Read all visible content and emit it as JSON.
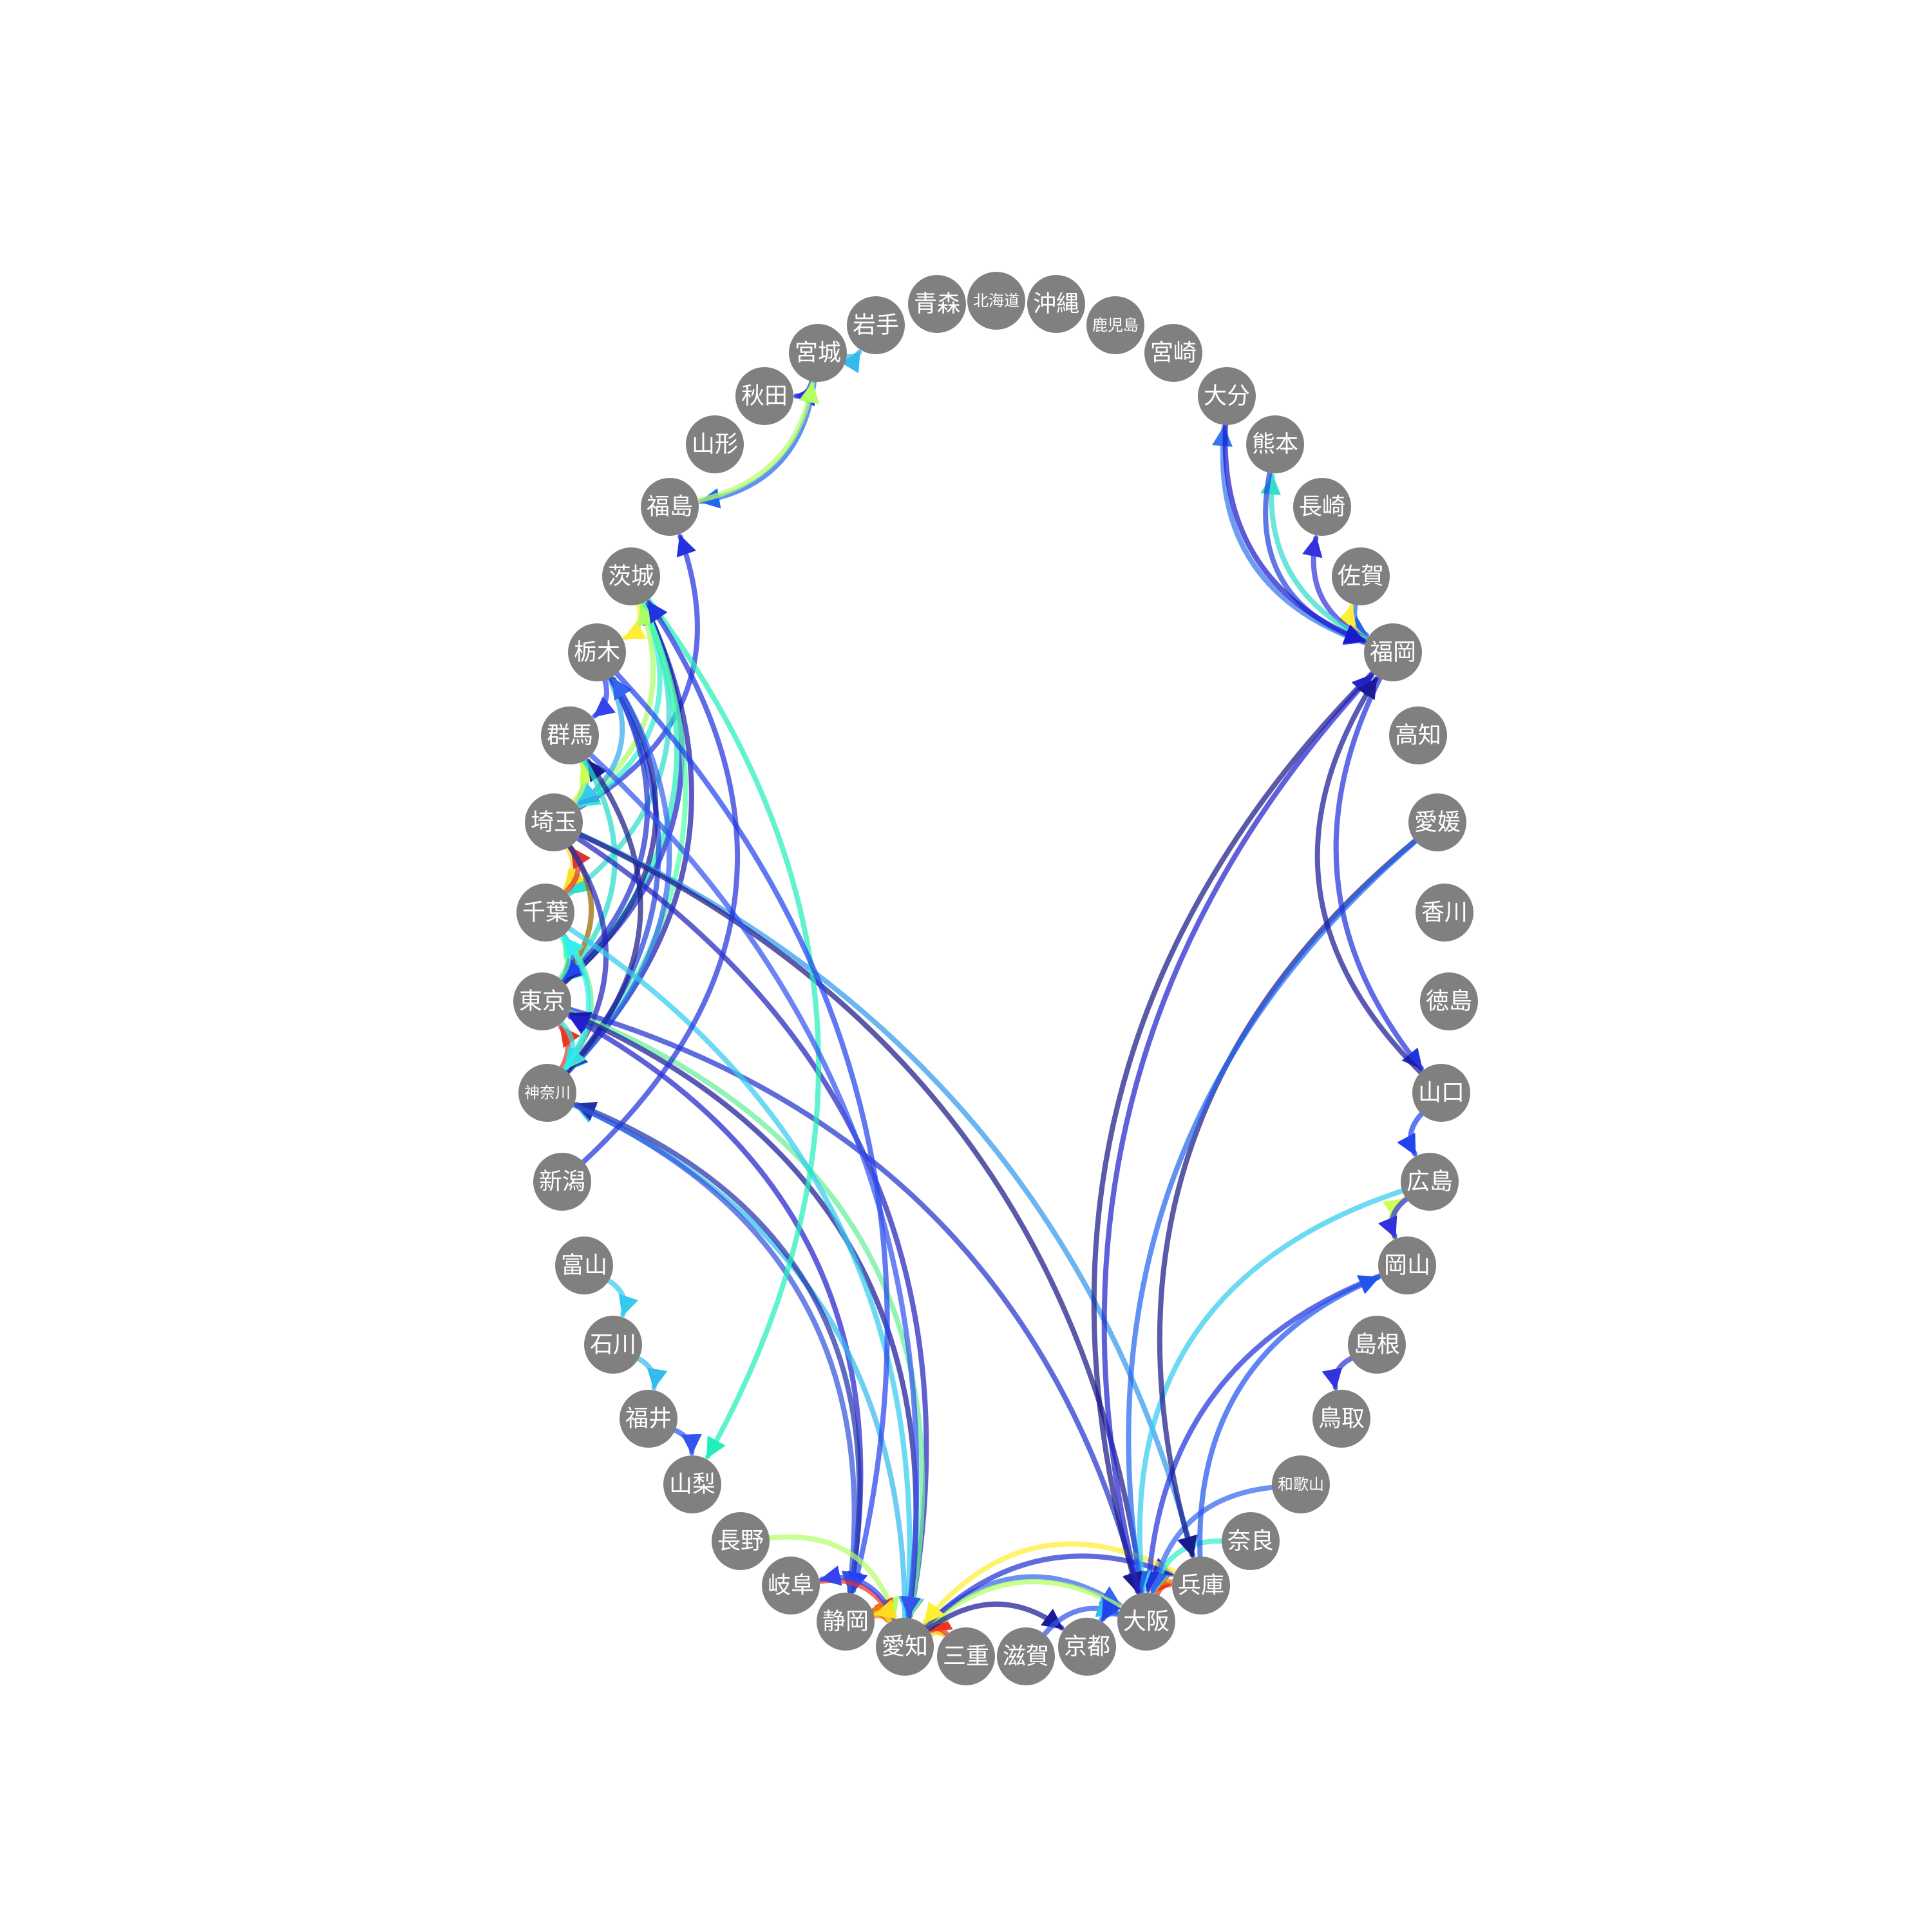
{
  "diagram": {
    "type": "directed-graph",
    "node_color": "#808080",
    "label_color": "#ffffff",
    "nodes": [
      {
        "id": "aomori",
        "label": "青森"
      },
      {
        "id": "hokkaido",
        "label": "北海道"
      },
      {
        "id": "okinawa",
        "label": "沖縄"
      },
      {
        "id": "kagoshima",
        "label": "鹿児島"
      },
      {
        "id": "miyazaki",
        "label": "宮崎"
      },
      {
        "id": "oita",
        "label": "大分"
      },
      {
        "id": "kumamoto",
        "label": "熊本"
      },
      {
        "id": "nagasaki",
        "label": "長崎"
      },
      {
        "id": "saga",
        "label": "佐賀"
      },
      {
        "id": "fukuoka",
        "label": "福岡"
      },
      {
        "id": "kochi",
        "label": "高知"
      },
      {
        "id": "ehime",
        "label": "愛媛"
      },
      {
        "id": "kagawa",
        "label": "香川"
      },
      {
        "id": "tokushima",
        "label": "徳島"
      },
      {
        "id": "yamaguchi",
        "label": "山口"
      },
      {
        "id": "hiroshima",
        "label": "広島"
      },
      {
        "id": "okayama",
        "label": "岡山"
      },
      {
        "id": "shimane",
        "label": "島根"
      },
      {
        "id": "tottori",
        "label": "鳥取"
      },
      {
        "id": "wakayama",
        "label": "和歌山"
      },
      {
        "id": "nara",
        "label": "奈良"
      },
      {
        "id": "hyogo",
        "label": "兵庫"
      },
      {
        "id": "osaka",
        "label": "大阪"
      },
      {
        "id": "kyoto",
        "label": "京都"
      },
      {
        "id": "shiga",
        "label": "滋賀"
      },
      {
        "id": "mie",
        "label": "三重"
      },
      {
        "id": "aichi",
        "label": "愛知"
      },
      {
        "id": "shizuoka",
        "label": "静岡"
      },
      {
        "id": "gifu",
        "label": "岐阜"
      },
      {
        "id": "nagano",
        "label": "長野"
      },
      {
        "id": "yamanashi",
        "label": "山梨"
      },
      {
        "id": "fukui",
        "label": "福井"
      },
      {
        "id": "ishikawa",
        "label": "石川"
      },
      {
        "id": "toyama",
        "label": "富山"
      },
      {
        "id": "niigata",
        "label": "新潟"
      },
      {
        "id": "kanagawa",
        "label": "神奈川"
      },
      {
        "id": "tokyo",
        "label": "東京"
      },
      {
        "id": "chiba",
        "label": "千葉"
      },
      {
        "id": "saitama",
        "label": "埼玉"
      },
      {
        "id": "gunma",
        "label": "群馬"
      },
      {
        "id": "tochigi",
        "label": "栃木"
      },
      {
        "id": "ibaraki",
        "label": "茨城"
      },
      {
        "id": "fukushima",
        "label": "福島"
      },
      {
        "id": "yamagata",
        "label": "山形"
      },
      {
        "id": "akita",
        "label": "秋田"
      },
      {
        "id": "miyagi",
        "label": "宮城"
      },
      {
        "id": "iwate",
        "label": "岩手"
      }
    ],
    "edges": [
      {
        "from": "miyagi",
        "to": "iwate",
        "color": "#33bbee"
      },
      {
        "from": "miyagi",
        "to": "akita",
        "color": "#3333dd"
      },
      {
        "from": "miyagi",
        "to": "fukushima",
        "color": "#2266ee"
      },
      {
        "from": "fukushima",
        "to": "miyagi",
        "color": "#b3ff66"
      },
      {
        "from": "saitama",
        "to": "fukushima",
        "color": "#2233dd"
      },
      {
        "from": "tokyo",
        "to": "ibaraki",
        "color": "#2222cc"
      },
      {
        "from": "kanagawa",
        "to": "ibaraki",
        "color": "#1a1aaa"
      },
      {
        "from": "ibaraki",
        "to": "saitama",
        "color": "#33eecc"
      },
      {
        "from": "ibaraki",
        "to": "chiba",
        "color": "#33ddcc"
      },
      {
        "from": "ibaraki",
        "to": "tokyo",
        "color": "#22eebb"
      },
      {
        "from": "ibaraki",
        "to": "kanagawa",
        "color": "#55ffaa"
      },
      {
        "from": "ibaraki",
        "to": "tochigi",
        "color": "#ffee33"
      },
      {
        "from": "saitama",
        "to": "ibaraki",
        "color": "#aaff66"
      },
      {
        "from": "tochigi",
        "to": "gunma",
        "color": "#3344ee"
      },
      {
        "from": "tochigi",
        "to": "saitama",
        "color": "#33aaee"
      },
      {
        "from": "tochigi",
        "to": "tokyo",
        "color": "#2233cc"
      },
      {
        "from": "tochigi",
        "to": "kanagawa",
        "color": "#2244dd"
      },
      {
        "from": "tokyo",
        "to": "tochigi",
        "color": "#1a1a99"
      },
      {
        "from": "kanagawa",
        "to": "tochigi",
        "color": "#3366ee"
      },
      {
        "from": "gunma",
        "to": "saitama",
        "color": "#33ccee"
      },
      {
        "from": "saitama",
        "to": "gunma",
        "color": "#ccff55"
      },
      {
        "from": "kanagawa",
        "to": "gunma",
        "color": "#1a1a88"
      },
      {
        "from": "gunma",
        "to": "tokyo",
        "color": "#22ddcc"
      },
      {
        "from": "saitama",
        "to": "chiba",
        "color": "#ffdd22"
      },
      {
        "from": "chiba",
        "to": "saitama",
        "color": "#dd3333"
      },
      {
        "from": "saitama",
        "to": "tokyo",
        "color": "#996600"
      },
      {
        "from": "saitama",
        "to": "kanagawa",
        "color": "#2222bb"
      },
      {
        "from": "chiba",
        "to": "tokyo",
        "color": "#2244ee"
      },
      {
        "from": "chiba",
        "to": "kanagawa",
        "color": "#66ee99"
      },
      {
        "from": "tokyo",
        "to": "chiba",
        "color": "#55ffaa"
      },
      {
        "from": "kanagawa",
        "to": "tokyo",
        "color": "#ee3322"
      },
      {
        "from": "tokyo",
        "to": "kanagawa",
        "color": "#33dddd"
      },
      {
        "from": "kanagawa",
        "to": "chiba",
        "color": "#33eeee"
      },
      {
        "from": "saitama",
        "to": "hyogo",
        "color": "#3399ee"
      },
      {
        "from": "saitama",
        "to": "aichi",
        "color": "#2222bb"
      },
      {
        "from": "saitama",
        "to": "osaka",
        "color": "#1a1a88"
      },
      {
        "from": "tokyo",
        "to": "osaka",
        "color": "#2233cc"
      },
      {
        "from": "tokyo",
        "to": "aichi",
        "color": "#66ee99"
      },
      {
        "from": "aichi",
        "to": "tokyo",
        "color": "#1a1a99"
      },
      {
        "from": "shizuoka",
        "to": "tokyo",
        "color": "#2222cc"
      },
      {
        "from": "aichi",
        "to": "kanagawa",
        "color": "#33bbee"
      },
      {
        "from": "shizuoka",
        "to": "kanagawa",
        "color": "#2233aa"
      },
      {
        "from": "kanagawa",
        "to": "shizuoka",
        "color": "#3355dd"
      },
      {
        "from": "chiba",
        "to": "aichi",
        "color": "#33ccee"
      },
      {
        "from": "ibaraki",
        "to": "yamanashi",
        "color": "#22eebb"
      },
      {
        "from": "tochigi",
        "to": "shizuoka",
        "color": "#2244ee"
      },
      {
        "from": "gunma",
        "to": "aichi",
        "color": "#3355ee"
      },
      {
        "from": "niigata",
        "to": "ibaraki",
        "color": "#2233dd"
      },
      {
        "from": "toyama",
        "to": "ishikawa",
        "color": "#33ccee"
      },
      {
        "from": "ishikawa",
        "to": "fukui",
        "color": "#33bbee"
      },
      {
        "from": "fukui",
        "to": "yamanashi",
        "color": "#3355ee"
      },
      {
        "from": "nagano",
        "to": "aichi",
        "color": "#b3ff66"
      },
      {
        "from": "gifu",
        "to": "aichi",
        "color": "#ee3322"
      },
      {
        "from": "shizuoka",
        "to": "aichi",
        "color": "#ee7711"
      },
      {
        "from": "aichi",
        "to": "gifu",
        "color": "#3344ee"
      },
      {
        "from": "aichi",
        "to": "shizuoka",
        "color": "#ffdd22"
      },
      {
        "from": "aichi",
        "to": "mie",
        "color": "#ffcc22"
      },
      {
        "from": "mie",
        "to": "aichi",
        "color": "#ee3322"
      },
      {
        "from": "aichi",
        "to": "osaka",
        "color": "#3366ee"
      },
      {
        "from": "osaka",
        "to": "aichi",
        "color": "#b3ff66"
      },
      {
        "from": "aichi",
        "to": "hyogo",
        "color": "#2233cc"
      },
      {
        "from": "hyogo",
        "to": "aichi",
        "color": "#ffee33"
      },
      {
        "from": "aichi",
        "to": "kyoto",
        "color": "#1a1a99"
      },
      {
        "from": "shiga",
        "to": "osaka",
        "color": "#3355ee"
      },
      {
        "from": "kyoto",
        "to": "osaka",
        "color": "#33bbee"
      },
      {
        "from": "osaka",
        "to": "kyoto",
        "color": "#2244ee"
      },
      {
        "from": "osaka",
        "to": "hyogo",
        "color": "#ee3322"
      },
      {
        "from": "hyogo",
        "to": "osaka",
        "color": "#ee7711"
      },
      {
        "from": "nara",
        "to": "osaka",
        "color": "#33eecc"
      },
      {
        "from": "wakayama",
        "to": "osaka",
        "color": "#3366ee"
      },
      {
        "from": "okayama",
        "to": "osaka",
        "color": "#2233dd"
      },
      {
        "from": "hiroshima",
        "to": "osaka",
        "color": "#33ccee"
      },
      {
        "from": "ehime",
        "to": "hyogo",
        "color": "#1a1a88"
      },
      {
        "from": "ehime",
        "to": "osaka",
        "color": "#2266ee"
      },
      {
        "from": "fukuoka",
        "to": "osaka",
        "color": "#1a1a88"
      },
      {
        "from": "osaka",
        "to": "fukuoka",
        "color": "#2222cc"
      },
      {
        "from": "hyogo",
        "to": "okayama",
        "color": "#2255ee"
      },
      {
        "from": "okayama",
        "to": "hiroshima",
        "color": "#ccff55"
      },
      {
        "from": "hiroshima",
        "to": "okayama",
        "color": "#3333dd"
      },
      {
        "from": "yamaguchi",
        "to": "hiroshima",
        "color": "#2244ee"
      },
      {
        "from": "fukuoka",
        "to": "yamaguchi",
        "color": "#2233dd"
      },
      {
        "from": "yamaguchi",
        "to": "fukuoka",
        "color": "#1a1a99"
      },
      {
        "from": "shimane",
        "to": "tottori",
        "color": "#3333dd"
      },
      {
        "from": "saga",
        "to": "fukuoka",
        "color": "#2266ee"
      },
      {
        "from": "fukuoka",
        "to": "saga",
        "color": "#ffee33"
      },
      {
        "from": "fukuoka",
        "to": "nagasaki",
        "color": "#3333dd"
      },
      {
        "from": "fukuoka",
        "to": "kumamoto",
        "color": "#33ddcc"
      },
      {
        "from": "kumamoto",
        "to": "fukuoka",
        "color": "#2244dd"
      },
      {
        "from": "fukuoka",
        "to": "oita",
        "color": "#3377ee"
      },
      {
        "from": "oita",
        "to": "fukuoka",
        "color": "#1a1acc"
      }
    ]
  }
}
